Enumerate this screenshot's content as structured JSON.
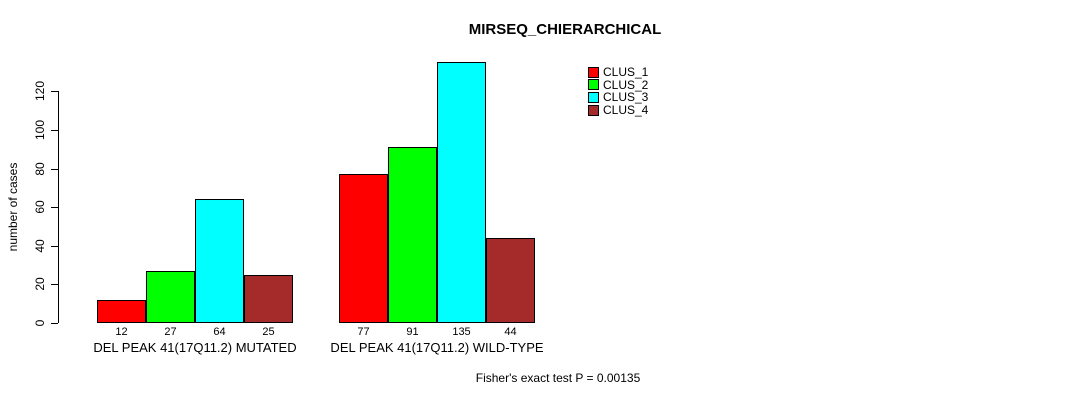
{
  "chart_data": {
    "type": "bar",
    "title": "MIRSEQ_CHIERARCHICAL",
    "ylabel": "number of cases",
    "xlabel": "",
    "annotation": "Fisher's exact test P = 0.00135",
    "yticks": [
      0,
      20,
      40,
      60,
      80,
      100,
      120
    ],
    "ylim": [
      0,
      135
    ],
    "grid": false,
    "legend_position": "top-right",
    "series": [
      {
        "name": "CLUS_1",
        "color": "#ff0000"
      },
      {
        "name": "CLUS_2",
        "color": "#00ff00"
      },
      {
        "name": "CLUS_3",
        "color": "#00ffff"
      },
      {
        "name": "CLUS_4",
        "color": "#a52a2a"
      }
    ],
    "groups": [
      {
        "label": "DEL PEAK 41(17Q11.2) MUTATED",
        "values": [
          12,
          27,
          64,
          25
        ]
      },
      {
        "label": "DEL PEAK 41(17Q11.2) WILD-TYPE",
        "values": [
          77,
          91,
          135,
          44
        ]
      }
    ]
  }
}
